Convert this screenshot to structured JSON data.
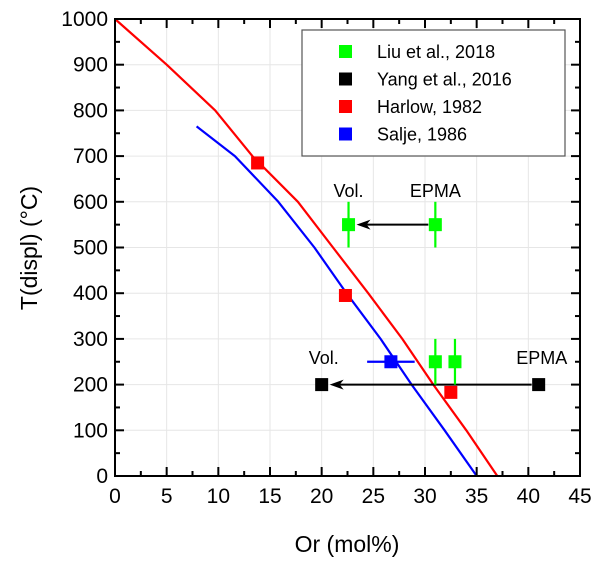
{
  "chart_data": {
    "type": "scatter",
    "title": "",
    "xlabel": "Or (mol%)",
    "ylabel": "T(displ) (°C)",
    "xlim": [
      0,
      45
    ],
    "ylim": [
      0,
      1000
    ],
    "xticks": [
      0,
      5,
      10,
      15,
      20,
      25,
      30,
      35,
      40,
      45
    ],
    "yticks": [
      0,
      100,
      200,
      300,
      400,
      500,
      600,
      700,
      800,
      900,
      1000
    ],
    "grid": true,
    "legend_position": "top-right",
    "legend": [
      {
        "label": "Liu et al., 2018",
        "color": "#00ff00"
      },
      {
        "label": "Yang et al., 2016",
        "color": "#000000"
      },
      {
        "label": "Harlow, 1982",
        "color": "#ff0000"
      },
      {
        "label": "Salje, 1986",
        "color": "#0000ff"
      }
    ],
    "lines": [
      {
        "name": "Harlow, 1982 curve",
        "color": "#ff0000",
        "points": [
          [
            0,
            1000
          ],
          [
            5,
            900
          ],
          [
            9.7,
            800
          ],
          [
            13.3,
            700
          ],
          [
            17.7,
            600
          ],
          [
            21.1,
            500
          ],
          [
            24.5,
            400
          ],
          [
            27.8,
            300
          ],
          [
            30.8,
            200
          ],
          [
            34.0,
            100
          ],
          [
            37,
            0
          ]
        ]
      },
      {
        "name": "Salje, 1986 curve",
        "color": "#0000ff",
        "points": [
          [
            7.9,
            765
          ],
          [
            11.6,
            700
          ],
          [
            15.8,
            600
          ],
          [
            19.3,
            500
          ],
          [
            22.4,
            400
          ],
          [
            25.7,
            300
          ],
          [
            28.7,
            200
          ],
          [
            31.9,
            100
          ],
          [
            35,
            0
          ]
        ]
      }
    ],
    "series": [
      {
        "name": "Liu et al., 2018",
        "color": "#00ff00",
        "points": [
          {
            "x": 22.6,
            "y": 550,
            "yerr": 50
          },
          {
            "x": 31.0,
            "y": 550,
            "yerr": 50
          },
          {
            "x": 31.0,
            "y": 250,
            "yerr": 50
          },
          {
            "x": 32.9,
            "y": 250,
            "yerr": 50
          }
        ]
      },
      {
        "name": "Yang et al., 2016",
        "color": "#000000",
        "points": [
          {
            "x": 20.0,
            "y": 200
          },
          {
            "x": 41.0,
            "y": 200
          }
        ]
      },
      {
        "name": "Harlow, 1982",
        "color": "#ff0000",
        "points": [
          {
            "x": 13.8,
            "y": 685
          },
          {
            "x": 22.3,
            "y": 395
          },
          {
            "x": 32.5,
            "y": 183
          }
        ]
      },
      {
        "name": "Salje, 1986",
        "color": "#0000ff",
        "points": [
          {
            "x": 26.7,
            "y": 250,
            "xerr": 2.3
          }
        ]
      }
    ],
    "arrows": [
      {
        "from": [
          31.0,
          550
        ],
        "to": [
          22.6,
          550
        ],
        "color": "#000000"
      },
      {
        "from": [
          41.0,
          200
        ],
        "to": [
          20.0,
          200
        ],
        "color": "#000000"
      }
    ],
    "annotations": [
      {
        "text": "Vol.",
        "x": 22.6,
        "y": 610
      },
      {
        "text": "EPMA",
        "x": 31.0,
        "y": 610
      },
      {
        "text": "Vol.",
        "x": 20.2,
        "y": 245
      },
      {
        "text": "EPMA",
        "x": 41.3,
        "y": 245
      }
    ]
  }
}
